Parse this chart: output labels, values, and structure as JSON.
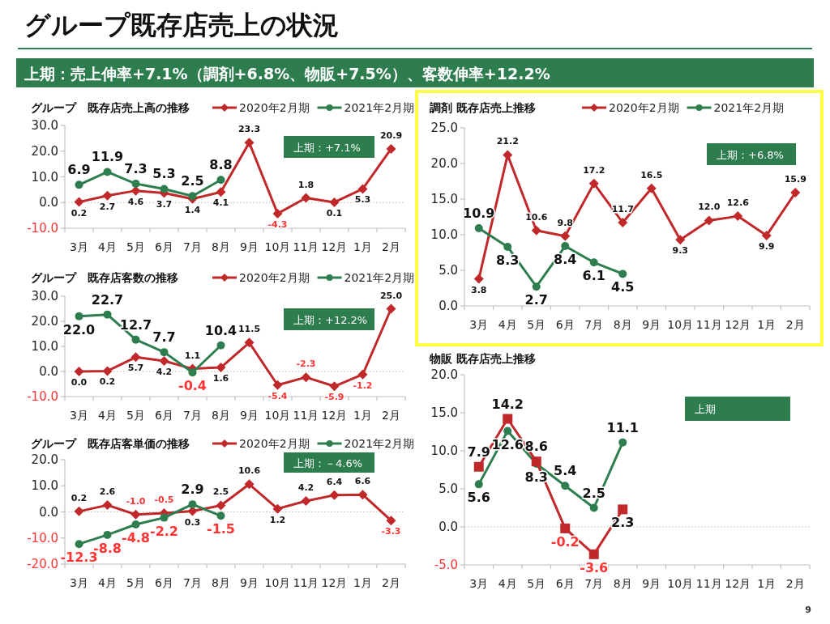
{
  "chart_data": [
    {
      "type": "line",
      "title": "グループ　既存店売上高の推移",
      "categories": [
        "3月",
        "4月",
        "5月",
        "6月",
        "7月",
        "8月",
        "9月",
        "10月",
        "11月",
        "12月",
        "1月",
        "2月"
      ],
      "series": [
        {
          "name": "2020年2月期",
          "color": "#c0282a",
          "marker": "diamond",
          "values": [
            0.2,
            2.7,
            4.6,
            3.7,
            1.4,
            4.1,
            23.3,
            -4.3,
            1.8,
            0.1,
            5.3,
            20.9
          ],
          "value_labels": [
            "0.2",
            "2.7",
            "4.6",
            "3.7",
            "1.4",
            "4.1",
            "23.3",
            "-4.3",
            "1.8",
            "0.1",
            "5.3",
            "20.9"
          ]
        },
        {
          "name": "2021年2月期",
          "color": "#2e7d4f",
          "marker": "circle",
          "values": [
            6.9,
            11.9,
            7.3,
            5.3,
            2.5,
            8.8,
            null,
            null,
            null,
            null,
            null,
            null
          ],
          "value_labels": [
            "6.9",
            "11.9",
            "7.3",
            "5.3",
            "2.5",
            "8.8",
            null,
            null,
            null,
            null,
            null,
            null
          ]
        }
      ],
      "ylim": [
        -10,
        30
      ],
      "yticks": [
        {
          "value": -10,
          "label": "-10.0"
        },
        {
          "value": 0,
          "label": "0.0"
        },
        {
          "value": 10,
          "label": "10.0"
        },
        {
          "value": 20,
          "label": "20.0"
        },
        {
          "value": 30,
          "label": "30.0"
        }
      ],
      "ref_lines": [
        {
          "axis": "y",
          "value": 0,
          "color": "#bfbfbf",
          "line_style": "dotted"
        }
      ],
      "legend": "top",
      "annotations": [
        "グループ既存店売上の状況",
        "上期：売上伸率+7.1%（調剤+6.8%、物販+7.5%）、客数伸率+12.2%",
        "9",
        "上期：+7.1%"
      ]
    },
    {
      "type": "line",
      "title": "グループ　既存店客数の推移",
      "categories": [
        "3月",
        "4月",
        "5月",
        "6月",
        "7月",
        "8月",
        "9月",
        "10月",
        "11月",
        "12月",
        "1月",
        "2月"
      ],
      "series": [
        {
          "name": "2020年2月期",
          "color": "#c0282a",
          "marker": "diamond",
          "values": [
            0.0,
            0.2,
            5.7,
            4.2,
            1.1,
            1.6,
            11.5,
            -5.4,
            -2.3,
            -5.9,
            -1.2,
            25.0
          ],
          "value_labels": [
            "0.0",
            "0.2",
            "5.7",
            "4.2",
            "1.1",
            "1.6",
            "11.5",
            "-5.4",
            "-2.3",
            "-5.9",
            "-1.2",
            "25.0"
          ]
        },
        {
          "name": "2021年2月期",
          "color": "#2e7d4f",
          "marker": "circle",
          "values": [
            22.0,
            22.7,
            12.7,
            7.7,
            -0.4,
            10.4,
            null,
            null,
            null,
            null,
            null,
            null
          ],
          "value_labels": [
            "22.0",
            "22.7",
            "12.7",
            "7.7",
            "-0.4",
            "10.4",
            null,
            null,
            null,
            null,
            null,
            null
          ]
        }
      ],
      "ylim": [
        -10,
        30
      ],
      "yticks": [
        {
          "value": -10,
          "label": "-10.0"
        },
        {
          "value": 0,
          "label": "0.0"
        },
        {
          "value": 10,
          "label": "10.0"
        },
        {
          "value": 20,
          "label": "20.0"
        },
        {
          "value": 30,
          "label": "30.0"
        }
      ],
      "ref_lines": [
        {
          "axis": "y",
          "value": 0,
          "color": "#bfbfbf",
          "line_style": "dotted"
        }
      ],
      "legend": "top",
      "annotations": [
        "上期：+12.2%"
      ]
    },
    {
      "type": "line",
      "title": "グループ　既存店客単価の推移",
      "categories": [
        "3月",
        "4月",
        "5月",
        "6月",
        "7月",
        "8月",
        "9月",
        "10月",
        "11月",
        "12月",
        "1月",
        "2月"
      ],
      "series": [
        {
          "name": "2020年2月期",
          "color": "#c0282a",
          "marker": "diamond",
          "values": [
            0.2,
            2.6,
            -1.0,
            -0.5,
            0.3,
            2.5,
            10.6,
            1.2,
            4.2,
            6.4,
            6.6,
            -3.3
          ],
          "value_labels": [
            "0.2",
            "2.6",
            "-1.0",
            "-0.5",
            "0.3",
            "2.5",
            "10.6",
            "1.2",
            "4.2",
            "6.4",
            "6.6",
            "-3.3"
          ]
        },
        {
          "name": "2021年2月期",
          "color": "#2e7d4f",
          "marker": "circle",
          "values": [
            -12.3,
            -8.8,
            -4.8,
            -2.2,
            2.9,
            -1.5,
            null,
            null,
            null,
            null,
            null,
            null
          ],
          "value_labels": [
            "-12.3",
            "-8.8",
            "-4.8",
            "-2.2",
            "2.9",
            "-1.5",
            null,
            null,
            null,
            null,
            null,
            null
          ]
        }
      ],
      "ylim": [
        -20,
        20
      ],
      "yticks": [
        {
          "value": -20,
          "label": "-20.0"
        },
        {
          "value": -10,
          "label": "-10.0"
        },
        {
          "value": 0,
          "label": "0.0"
        },
        {
          "value": 10,
          "label": "10.0"
        },
        {
          "value": 20,
          "label": "20.0"
        }
      ],
      "ref_lines": [
        {
          "axis": "y",
          "value": 0,
          "color": "#bfbfbf",
          "line_style": "dotted"
        }
      ],
      "legend": "top",
      "annotations": [
        "上期：－4.6%"
      ]
    },
    {
      "type": "line",
      "title": "調剤 既存店売上推移",
      "categories": [
        "3月",
        "4月",
        "5月",
        "6月",
        "7月",
        "8月",
        "9月",
        "10月",
        "11月",
        "12月",
        "1月",
        "2月"
      ],
      "series": [
        {
          "name": "2020年2月期",
          "color": "#c0282a",
          "marker": "diamond",
          "values": [
            3.8,
            21.2,
            10.6,
            9.8,
            17.2,
            11.7,
            16.5,
            9.3,
            12.0,
            12.6,
            9.9,
            15.9
          ],
          "value_labels": [
            "3.8",
            "21.2",
            "10.6",
            "9.8",
            "17.2",
            "11.7",
            "16.5",
            "9.3",
            "12.0",
            "12.6",
            "9.9",
            "15.9"
          ]
        },
        {
          "name": "2021年2月期",
          "color": "#2e7d4f",
          "marker": "circle",
          "values": [
            10.9,
            8.3,
            2.7,
            8.4,
            6.1,
            4.5,
            null,
            null,
            null,
            null,
            null,
            null
          ],
          "value_labels": [
            "10.9",
            "8.3",
            "2.7",
            "8.4",
            "6.1",
            "4.5",
            null,
            null,
            null,
            null,
            null,
            null
          ]
        }
      ],
      "ylim": [
        0,
        25
      ],
      "yticks": [
        {
          "value": 0,
          "label": "0.0"
        },
        {
          "value": 5,
          "label": "5.0"
        },
        {
          "value": 10,
          "label": "10.0"
        },
        {
          "value": 15,
          "label": "15.0"
        },
        {
          "value": 20,
          "label": "20.0"
        },
        {
          "value": 25,
          "label": "25.0"
        }
      ],
      "legend": "top",
      "annotations": [
        "上期：+6.8%"
      ]
    },
    {
      "type": "line",
      "title": "物販 既存店売上推移",
      "categories": [
        "3月",
        "4月",
        "5月",
        "6月",
        "7月",
        "8月",
        "9月",
        "10月",
        "11月",
        "12月",
        "1月",
        "2月"
      ],
      "series": [
        {
          "color": "#2e7d4f",
          "marker": "circle",
          "values": [
            5.6,
            12.6,
            8.3,
            5.4,
            2.5,
            11.1,
            null,
            null,
            null,
            null,
            null,
            null
          ],
          "value_labels": [
            "5.6",
            "12.6",
            "8.3",
            "5.4",
            "2.5",
            "11.1",
            null,
            null,
            null,
            null,
            null,
            null
          ]
        },
        {
          "color": "#c0282a",
          "marker": "square",
          "values": [
            7.9,
            14.2,
            8.6,
            -0.2,
            -3.6,
            2.3,
            null,
            null,
            null,
            null,
            null,
            null
          ],
          "value_labels": [
            "7.9",
            "14.2",
            "8.6",
            "-0.2",
            "-3.6",
            "2.3",
            null,
            null,
            null,
            null,
            null,
            null
          ]
        }
      ],
      "ylim": [
        -5,
        20
      ],
      "yticks": [
        {
          "value": -5,
          "label": "-5.0"
        },
        {
          "value": 0,
          "label": "0.0"
        },
        {
          "value": 5,
          "label": "5.0"
        },
        {
          "value": 10,
          "label": "10.0"
        },
        {
          "value": 15,
          "label": "15.0"
        },
        {
          "value": 20,
          "label": "20.0"
        }
      ],
      "ref_lines": [
        {
          "axis": "y",
          "value": 0,
          "color": "#bfbfbf",
          "line_style": "dotted"
        }
      ],
      "annotations": [
        "上期"
      ]
    }
  ]
}
